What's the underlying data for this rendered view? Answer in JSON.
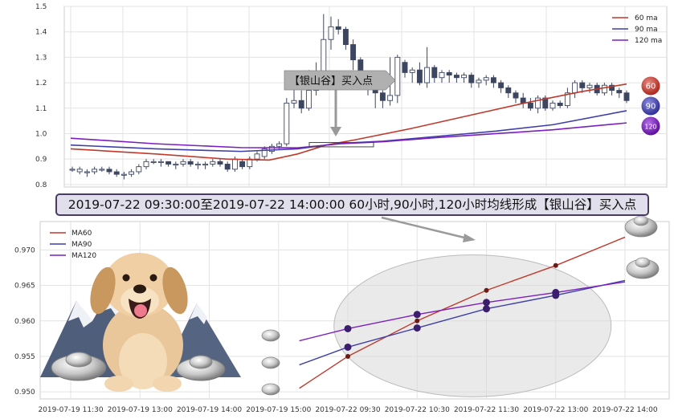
{
  "chart_data": [
    {
      "type": "candlestick",
      "title": "",
      "ylim": [
        0.79,
        1.5
      ],
      "y_ticks": [
        "1.5",
        "1.4",
        "1.3",
        "1.2",
        "1.1",
        "1.0",
        "0.9",
        "0.8"
      ],
      "grid": true,
      "legend_placement": "top-right",
      "legend": [
        "60 ma",
        "90 ma",
        "120 ma"
      ],
      "series_colors": {
        "60 ma": "#c0392b",
        "90 ma": "#3f3fa8",
        "120 ma": "#7b1fbf"
      },
      "end_labels": [
        "60",
        "90",
        "120"
      ],
      "end_values": {
        "60": 1.195,
        "90": 1.09,
        "120": 1.042
      },
      "annotation": "【银山谷】买入点",
      "ma_lines": {
        "60": [
          [
            0,
            0.94
          ],
          [
            30,
            0.92
          ],
          [
            55,
            0.9
          ],
          [
            70,
            0.896
          ],
          [
            80,
            0.92
          ],
          [
            90,
            0.955
          ],
          [
            100,
            0.975
          ],
          [
            120,
            1.02
          ],
          [
            140,
            1.07
          ],
          [
            160,
            1.12
          ],
          [
            180,
            1.165
          ],
          [
            196,
            1.195
          ]
        ],
        "90": [
          [
            0,
            0.955
          ],
          [
            30,
            0.94
          ],
          [
            60,
            0.93
          ],
          [
            80,
            0.94
          ],
          [
            95,
            0.962
          ],
          [
            110,
            0.97
          ],
          [
            130,
            0.99
          ],
          [
            150,
            1.01
          ],
          [
            170,
            1.035
          ],
          [
            196,
            1.09
          ]
        ],
        "120": [
          [
            0,
            0.982
          ],
          [
            30,
            0.96
          ],
          [
            60,
            0.945
          ],
          [
            80,
            0.944
          ],
          [
            95,
            0.96
          ],
          [
            110,
            0.968
          ],
          [
            130,
            0.985
          ],
          [
            150,
            1.0
          ],
          [
            170,
            1.015
          ],
          [
            196,
            1.042
          ]
        ]
      },
      "candles": [
        [
          0.86,
          0.86,
          0.85,
          0.87
        ],
        [
          0.85,
          0.86,
          0.84,
          0.87
        ],
        [
          0.85,
          0.85,
          0.83,
          0.86
        ],
        [
          0.85,
          0.86,
          0.84,
          0.87
        ],
        [
          0.86,
          0.86,
          0.85,
          0.87
        ],
        [
          0.86,
          0.85,
          0.84,
          0.87
        ],
        [
          0.85,
          0.84,
          0.83,
          0.86
        ],
        [
          0.84,
          0.84,
          0.82,
          0.85
        ],
        [
          0.84,
          0.85,
          0.83,
          0.86
        ],
        [
          0.85,
          0.87,
          0.84,
          0.88
        ],
        [
          0.87,
          0.89,
          0.86,
          0.9
        ],
        [
          0.89,
          0.89,
          0.88,
          0.9
        ],
        [
          0.89,
          0.89,
          0.87,
          0.9
        ],
        [
          0.89,
          0.88,
          0.87,
          0.89
        ],
        [
          0.88,
          0.88,
          0.86,
          0.89
        ],
        [
          0.88,
          0.89,
          0.87,
          0.9
        ],
        [
          0.89,
          0.88,
          0.87,
          0.9
        ],
        [
          0.88,
          0.88,
          0.86,
          0.89
        ],
        [
          0.88,
          0.88,
          0.86,
          0.89
        ],
        [
          0.88,
          0.89,
          0.87,
          0.9
        ],
        [
          0.89,
          0.88,
          0.87,
          0.9
        ],
        [
          0.88,
          0.86,
          0.85,
          0.89
        ],
        [
          0.86,
          0.9,
          0.85,
          0.91
        ],
        [
          0.89,
          0.87,
          0.86,
          0.9
        ],
        [
          0.87,
          0.9,
          0.86,
          0.91
        ],
        [
          0.9,
          0.92,
          0.89,
          0.93
        ],
        [
          0.91,
          0.94,
          0.9,
          0.95
        ],
        [
          0.93,
          0.95,
          0.92,
          0.96
        ],
        [
          0.95,
          0.96,
          0.94,
          0.97
        ],
        [
          0.96,
          1.12,
          0.95,
          1.14
        ],
        [
          1.12,
          1.13,
          1.1,
          1.2
        ],
        [
          1.13,
          1.1,
          1.08,
          1.17
        ],
        [
          1.1,
          1.17,
          1.09,
          1.25
        ],
        [
          1.17,
          1.2,
          1.15,
          1.28
        ],
        [
          1.2,
          1.37,
          1.18,
          1.47
        ],
        [
          1.37,
          1.42,
          1.33,
          1.46
        ],
        [
          1.42,
          1.41,
          1.39,
          1.45
        ],
        [
          1.41,
          1.35,
          1.33,
          1.42
        ],
        [
          1.35,
          1.29,
          1.25,
          1.37
        ],
        [
          1.29,
          1.23,
          1.2,
          1.3
        ],
        [
          1.23,
          1.2,
          1.15,
          1.24
        ],
        [
          1.2,
          1.16,
          1.1,
          1.22
        ],
        [
          1.16,
          1.13,
          1.1,
          1.17
        ],
        [
          1.13,
          1.15,
          1.11,
          1.3
        ],
        [
          1.15,
          1.3,
          1.12,
          1.31
        ],
        [
          1.28,
          1.24,
          1.22,
          1.29
        ],
        [
          1.24,
          1.25,
          1.2,
          1.26
        ],
        [
          1.25,
          1.2,
          1.19,
          1.28
        ],
        [
          1.2,
          1.26,
          1.18,
          1.34
        ],
        [
          1.26,
          1.22,
          1.2,
          1.27
        ],
        [
          1.22,
          1.24,
          1.2,
          1.25
        ],
        [
          1.24,
          1.23,
          1.2,
          1.25
        ],
        [
          1.23,
          1.22,
          1.2,
          1.24
        ],
        [
          1.22,
          1.23,
          1.2,
          1.24
        ],
        [
          1.23,
          1.2,
          1.18,
          1.24
        ],
        [
          1.2,
          1.21,
          1.18,
          1.22
        ],
        [
          1.21,
          1.22,
          1.19,
          1.23
        ],
        [
          1.22,
          1.2,
          1.18,
          1.23
        ],
        [
          1.2,
          1.18,
          1.16,
          1.21
        ],
        [
          1.18,
          1.16,
          1.14,
          1.19
        ],
        [
          1.16,
          1.14,
          1.12,
          1.17
        ],
        [
          1.14,
          1.12,
          1.1,
          1.16
        ],
        [
          1.12,
          1.1,
          1.09,
          1.14
        ],
        [
          1.1,
          1.14,
          1.08,
          1.15
        ],
        [
          1.14,
          1.1,
          1.09,
          1.15
        ],
        [
          1.1,
          1.12,
          1.09,
          1.13
        ],
        [
          1.12,
          1.11,
          1.1,
          1.13
        ],
        [
          1.11,
          1.16,
          1.1,
          1.18
        ],
        [
          1.16,
          1.2,
          1.14,
          1.21
        ],
        [
          1.2,
          1.18,
          1.16,
          1.21
        ],
        [
          1.18,
          1.19,
          1.16,
          1.2
        ],
        [
          1.19,
          1.16,
          1.15,
          1.2
        ],
        [
          1.16,
          1.19,
          1.15,
          1.2
        ],
        [
          1.19,
          1.17,
          1.15,
          1.2
        ],
        [
          1.17,
          1.16,
          1.14,
          1.18
        ],
        [
          1.16,
          1.13,
          1.12,
          1.17
        ]
      ]
    },
    {
      "type": "line",
      "title": "",
      "x_ticks": [
        "2019-07-19 11:30",
        "2019-07-19 13:00",
        "2019-07-19 14:00",
        "2019-07-19 15:00",
        "2019-07-22 09:30",
        "2019-07-22 10:30",
        "2019-07-22 11:30",
        "2019-07-22 13:00",
        "2019-07-22 14:00"
      ],
      "y_ticks": [
        "0.970",
        "0.965",
        "0.960",
        "0.955",
        "0.950"
      ],
      "ylim": [
        0.949,
        0.974
      ],
      "grid": true,
      "legend_placement": "top-left",
      "series": [
        {
          "name": "MA60",
          "color": "#c0392b",
          "x": [
            3.3,
            4.0,
            5.0,
            6.0,
            7.0,
            8.0
          ],
          "y": [
            0.9505,
            0.955,
            0.96,
            0.9643,
            0.9678,
            0.9718
          ]
        },
        {
          "name": "MA90",
          "color": "#3f3fa8",
          "x": [
            3.3,
            4.0,
            5.0,
            6.0,
            7.0,
            8.0
          ],
          "y": [
            0.9538,
            0.9563,
            0.959,
            0.9617,
            0.9636,
            0.9657
          ]
        },
        {
          "name": "MA120",
          "color": "#7b1fbf",
          "x": [
            3.3,
            4.0,
            5.0,
            6.0,
            7.0,
            8.0
          ],
          "y": [
            0.9572,
            0.9589,
            0.9609,
            0.9626,
            0.964,
            0.9655
          ]
        }
      ],
      "highlight_ellipse": {
        "x_center": 5.8,
        "y_center": 0.9593,
        "x_radius": 2.0,
        "y_radius": 0.01
      }
    }
  ],
  "banner": {
    "text": "2019-07-22 09:30:00至2019-07-22 14:00:00 60小时,90小时,120小时均线形成【银山谷】买入点"
  }
}
